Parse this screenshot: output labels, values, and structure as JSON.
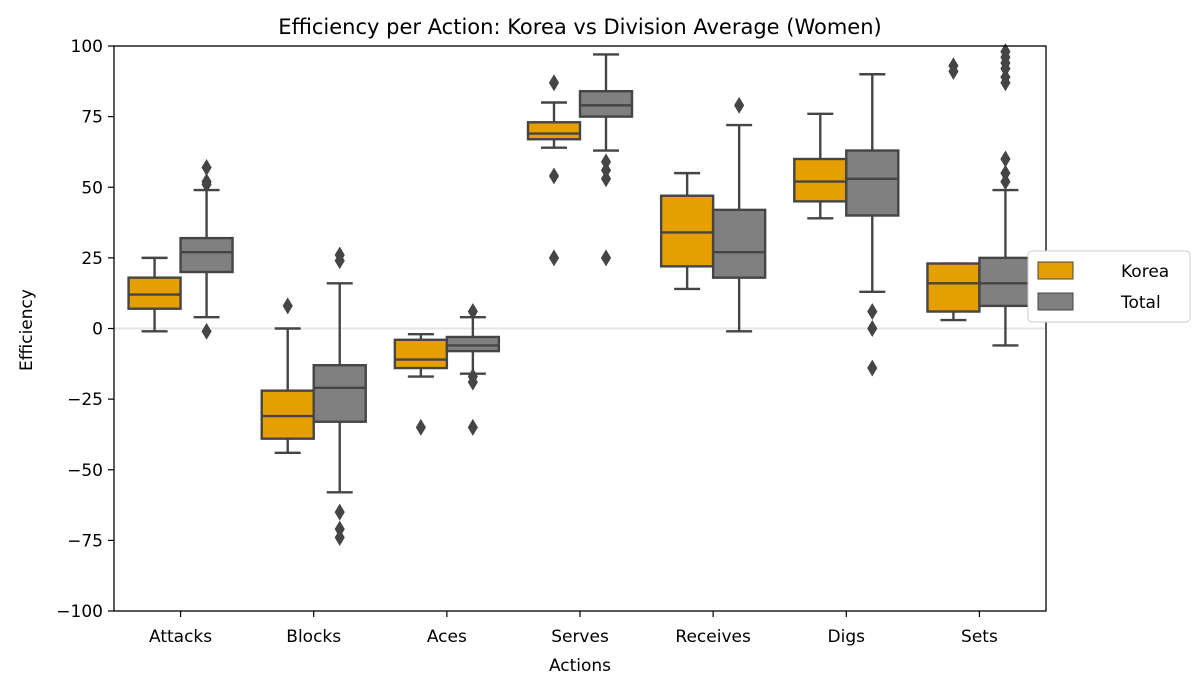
{
  "chart_data": {
    "type": "boxplot",
    "title": "Efficiency per Action: Korea vs Division Average (Women)",
    "xlabel": "Actions",
    "ylabel": "Efficiency",
    "ylim": [
      -100,
      100
    ],
    "yticks": [
      -100,
      -75,
      -50,
      -25,
      0,
      25,
      50,
      75,
      100
    ],
    "ytick_labels": [
      "−100",
      "−75",
      "−50",
      "−25",
      "0",
      "25",
      "50",
      "75",
      "100"
    ],
    "categories": [
      "Attacks",
      "Blocks",
      "Aces",
      "Serves",
      "Receives",
      "Digs",
      "Sets"
    ],
    "reference_line": 0,
    "legend_position": "right-outside",
    "series": [
      {
        "name": "Korea",
        "color": "#E69F00",
        "boxes": [
          {
            "whislo": -1,
            "q1": 7,
            "med": 12,
            "q3": 18,
            "whishi": 25,
            "fliers": []
          },
          {
            "whislo": -44,
            "q1": -39,
            "med": -31,
            "q3": -22,
            "whishi": 0,
            "fliers": [
              8
            ]
          },
          {
            "whislo": -17,
            "q1": -14,
            "med": -11,
            "q3": -4,
            "whishi": -2,
            "fliers": [
              -35
            ]
          },
          {
            "whislo": 64,
            "q1": 67,
            "med": 69,
            "q3": 73,
            "whishi": 80,
            "fliers": [
              87,
              54,
              25
            ]
          },
          {
            "whislo": 14,
            "q1": 22,
            "med": 34,
            "q3": 47,
            "whishi": 55,
            "fliers": []
          },
          {
            "whislo": 39,
            "q1": 45,
            "med": 52,
            "q3": 60,
            "whishi": 76,
            "fliers": []
          },
          {
            "whislo": 3,
            "q1": 6,
            "med": 16,
            "q3": 23,
            "whishi": 23,
            "fliers": [
              93,
              91
            ]
          }
        ]
      },
      {
        "name": "Total",
        "color": "#808080",
        "boxes": [
          {
            "whislo": 4,
            "q1": 20,
            "med": 27,
            "q3": 32,
            "whishi": 49,
            "fliers": [
              57,
              52,
              51,
              -1
            ]
          },
          {
            "whislo": -58,
            "q1": -33,
            "med": -21,
            "q3": -13,
            "whishi": 16,
            "fliers": [
              26,
              24,
              -65,
              -71,
              -74
            ]
          },
          {
            "whislo": -16,
            "q1": -8,
            "med": -6,
            "q3": -3,
            "whishi": 4,
            "fliers": [
              6,
              -17,
              -19,
              -35
            ]
          },
          {
            "whislo": 63,
            "q1": 75,
            "med": 79,
            "q3": 84,
            "whishi": 97,
            "fliers": [
              59,
              56,
              53,
              25
            ]
          },
          {
            "whislo": -1,
            "q1": 18,
            "med": 27,
            "q3": 42,
            "whishi": 72,
            "fliers": [
              79
            ]
          },
          {
            "whislo": 13,
            "q1": 40,
            "med": 53,
            "q3": 63,
            "whishi": 90,
            "fliers": [
              6,
              0,
              -14
            ]
          },
          {
            "whislo": -6,
            "q1": 8,
            "med": 16,
            "q3": 25,
            "whishi": 49,
            "fliers": [
              98,
              96,
              94,
              92,
              89,
              87,
              60,
              55,
              52
            ]
          }
        ]
      }
    ],
    "box_edge_color": "#454545",
    "reference_line_color": "#e6e6e6"
  }
}
